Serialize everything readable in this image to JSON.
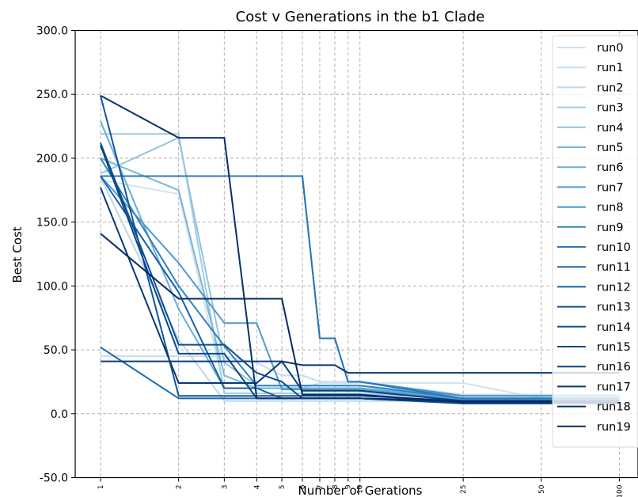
{
  "chart_data": {
    "type": "line",
    "title": "Cost v Generations in the b1 Clade",
    "xlabel": "Number of Gerations",
    "ylabel": "Best Cost",
    "x_scale": "log",
    "xlim": [
      1,
      110
    ],
    "ylim": [
      -50,
      300
    ],
    "grid": true,
    "legend_position": "upper-right",
    "x_ticks": [
      1,
      2,
      3,
      4,
      5,
      6,
      7,
      8,
      9,
      10,
      25,
      50,
      100
    ],
    "x_tick_labels": [
      "1",
      "2",
      "3",
      "4",
      "5",
      "6",
      "7",
      "8",
      "9",
      "10",
      "25",
      "50",
      "100"
    ],
    "y_ticks": [
      -50,
      0,
      50,
      100,
      150,
      200,
      250,
      300
    ],
    "y_tick_labels": [
      "-50.0",
      "0.0",
      "50.0",
      "100.0",
      "150.0",
      "200.0",
      "250.0",
      "300.0"
    ],
    "x": [
      1,
      2,
      3,
      4,
      5,
      6,
      7,
      8,
      9,
      10,
      25,
      50,
      100
    ],
    "series": [
      {
        "name": "run0",
        "color": "#d1e2f2",
        "values": [
          183,
          172,
          20,
          20,
          20,
          20,
          24,
          24,
          24,
          24,
          24,
          12,
          12
        ]
      },
      {
        "name": "run1",
        "color": "#c8dcef",
        "values": [
          45,
          45,
          45,
          40,
          30,
          30,
          25,
          25,
          25,
          25,
          15,
          15,
          15
        ]
      },
      {
        "name": "run2",
        "color": "#bdd7ec",
        "values": [
          185,
          58,
          10,
          10,
          10,
          10,
          10,
          10,
          10,
          10,
          10,
          10,
          10
        ]
      },
      {
        "name": "run3",
        "color": "#a3cce3",
        "values": [
          219,
          219,
          16,
          16,
          16,
          16,
          16,
          16,
          16,
          16,
          12,
          12,
          12
        ]
      },
      {
        "name": "run4",
        "color": "#94c4df",
        "values": [
          188,
          216,
          40,
          22,
          22,
          22,
          22,
          22,
          22,
          22,
          14,
          14,
          14
        ]
      },
      {
        "name": "run5",
        "color": "#79b5d9",
        "values": [
          200,
          175,
          30,
          20,
          20,
          20,
          20,
          20,
          20,
          20,
          12,
          12,
          12
        ]
      },
      {
        "name": "run6",
        "color": "#69add5",
        "values": [
          229,
          82,
          20,
          20,
          20,
          20,
          20,
          20,
          20,
          20,
          12,
          12,
          12
        ]
      },
      {
        "name": "run7",
        "color": "#4f9bcb",
        "values": [
          186,
          118,
          71,
          71,
          19,
          19,
          19,
          19,
          19,
          19,
          11,
          11,
          11
        ]
      },
      {
        "name": "run8",
        "color": "#4191c6",
        "values": [
          186,
          186,
          186,
          186,
          186,
          186,
          59,
          59,
          25,
          25,
          14,
          14,
          14
        ]
      },
      {
        "name": "run9",
        "color": "#3282be",
        "values": [
          200,
          100,
          53,
          22,
          22,
          22,
          22,
          22,
          22,
          22,
          12,
          12,
          12
        ]
      },
      {
        "name": "run10",
        "color": "#2a77b8",
        "values": [
          186,
          186,
          186,
          186,
          186,
          186,
          59,
          59,
          25,
          25,
          12,
          12,
          12
        ]
      },
      {
        "name": "run11",
        "color": "#1c68ae",
        "values": [
          52,
          12,
          12,
          12,
          12,
          12,
          12,
          12,
          12,
          12,
          10,
          10,
          10
        ]
      },
      {
        "name": "run12",
        "color": "#1662a8",
        "values": [
          186,
          95,
          20,
          20,
          12,
          12,
          12,
          12,
          12,
          12,
          9,
          9,
          9
        ]
      },
      {
        "name": "run13",
        "color": "#0f559c",
        "values": [
          249,
          14,
          14,
          14,
          14,
          14,
          14,
          14,
          14,
          14,
          10,
          10,
          10
        ]
      },
      {
        "name": "run14",
        "color": "#0b4e93",
        "values": [
          212,
          54,
          54,
          32,
          25,
          12,
          12,
          12,
          12,
          12,
          8,
          8,
          8
        ]
      },
      {
        "name": "run15",
        "color": "#094686",
        "values": [
          210,
          47,
          47,
          12,
          12,
          12,
          12,
          12,
          12,
          12,
          9,
          9,
          9
        ]
      },
      {
        "name": "run16",
        "color": "#083f7e",
        "values": [
          41,
          41,
          41,
          41,
          41,
          18,
          18,
          18,
          18,
          18,
          10,
          10,
          10
        ]
      },
      {
        "name": "run17",
        "color": "#083874",
        "values": [
          177,
          24,
          24,
          24,
          41,
          38,
          38,
          38,
          32,
          32,
          32,
          32,
          32
        ]
      },
      {
        "name": "run18",
        "color": "#08306b",
        "values": [
          249,
          216,
          216,
          12,
          12,
          12,
          12,
          12,
          12,
          12,
          10,
          10,
          10
        ]
      },
      {
        "name": "run19",
        "color": "#072a60",
        "values": [
          141,
          90,
          90,
          90,
          90,
          15,
          15,
          15,
          15,
          15,
          9,
          9,
          9
        ]
      }
    ]
  }
}
